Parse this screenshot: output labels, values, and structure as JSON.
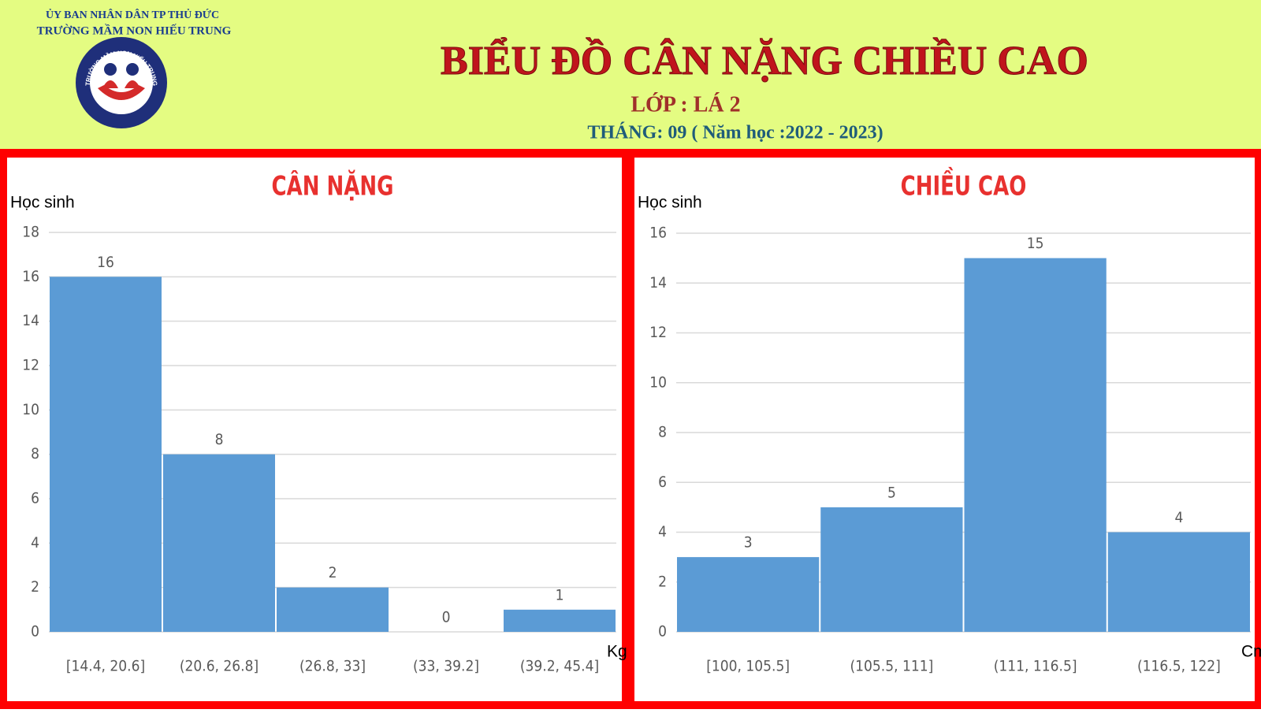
{
  "header": {
    "org": "ỦY BAN NHÂN DÂN TP THỦ ĐỨC",
    "school": "TRƯỜNG MẦM NON HIẾU TRUNG",
    "logo_text": "TRƯỜNG MẦM NON HIẾU TRUNG",
    "title": "BIỂU ĐỒ CÂN NẶNG CHIỀU CAO",
    "class": "LỚP : LÁ 2",
    "month": "THÁNG: 09 ( Năm học :2022 - 2023)"
  },
  "chart_data": [
    {
      "type": "bar",
      "title": "CÂN NẶNG",
      "ylabel": "Học sinh",
      "xlabel": "Kg",
      "color": "#5b9bd5",
      "grid": true,
      "categories": [
        "[14.4, 20.6]",
        "(20.6, 26.8]",
        "(26.8, 33]",
        "(33, 39.2]",
        "(39.2, 45.4]"
      ],
      "values": [
        16,
        8,
        2,
        0,
        1
      ],
      "ylim": [
        0,
        18
      ],
      "yticks": [
        0,
        2,
        4,
        6,
        8,
        10,
        12,
        14,
        16,
        18
      ]
    },
    {
      "type": "bar",
      "title": "CHIỀU CAO",
      "ylabel": "Học sinh",
      "xlabel": "Cm",
      "color": "#5b9bd5",
      "grid": true,
      "categories": [
        "[100, 105.5]",
        "(105.5, 111]",
        "(111, 116.5]",
        "(116.5, 122]"
      ],
      "values": [
        3,
        5,
        15,
        4
      ],
      "ylim": [
        0,
        16
      ],
      "yticks": [
        0,
        2,
        4,
        6,
        8,
        10,
        12,
        14,
        16
      ]
    }
  ]
}
